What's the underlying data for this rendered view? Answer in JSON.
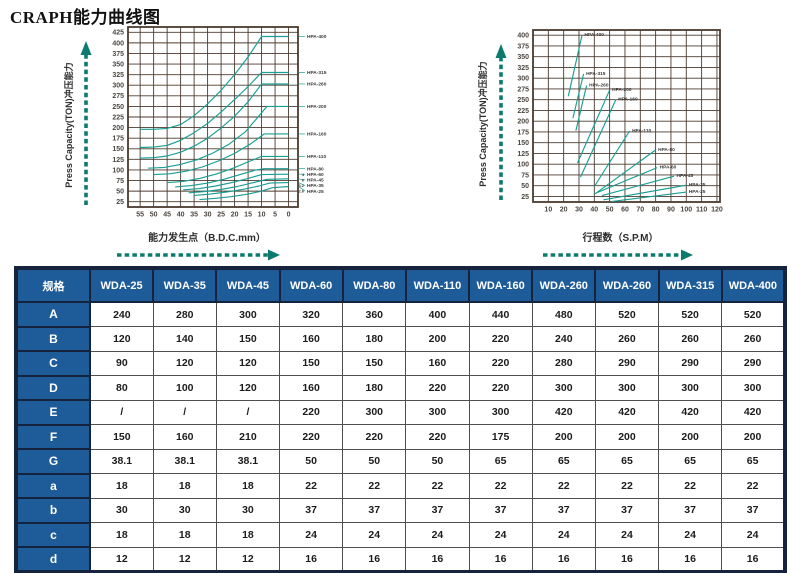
{
  "page": {
    "title": "CRAPH能力曲线图"
  },
  "colors": {
    "curve_teal": "#189e92",
    "arrow_teal": "#0d7a6e",
    "grid_brown": "#4b3a2f",
    "axis_text": "#4c4640",
    "label_text": "#3a3a3a",
    "table_header_bg": "#1e5b99",
    "table_frame_navy": "#15233d"
  },
  "chart_data": [
    {
      "type": "line",
      "name": "capacity-vs-bdc",
      "xlabel": "能力发生点（B.D.C.mm）",
      "ylabel": "Press Capacity(TON)冲压能力",
      "x_ticks": [
        55,
        50,
        45,
        40,
        35,
        30,
        25,
        20,
        15,
        10,
        5,
        0
      ],
      "y_ticks": [
        25,
        50,
        75,
        100,
        125,
        150,
        175,
        200,
        225,
        250,
        275,
        300,
        325,
        350,
        375,
        400,
        425
      ],
      "xlim_display": [
        59.5,
        -3.5
      ],
      "ylim": [
        12.5,
        437.5
      ],
      "grid": true,
      "legend_position": "right-outside",
      "series": [
        {
          "name": "HPA-400",
          "label_prefix": "",
          "points": [
            [
              55,
              196
            ],
            [
              50,
              196
            ],
            [
              45,
              198
            ],
            [
              40,
              207
            ],
            [
              35,
              228
            ],
            [
              30,
              256
            ],
            [
              25,
              288
            ],
            [
              20,
              325
            ],
            [
              15,
              367
            ],
            [
              10,
              415
            ],
            [
              0,
              415
            ]
          ]
        },
        {
          "name": "HPA-315",
          "label_prefix": "",
          "points": [
            [
              55,
              153
            ],
            [
              50,
              154
            ],
            [
              45,
              158
            ],
            [
              40,
              170
            ],
            [
              35,
              188
            ],
            [
              30,
              210
            ],
            [
              25,
              237
            ],
            [
              20,
              266
            ],
            [
              15,
              297
            ],
            [
              10,
              330
            ],
            [
              0,
              330
            ]
          ]
        },
        {
          "name": "HPA-260",
          "label_prefix": "",
          "points": [
            [
              55,
              128
            ],
            [
              50,
              129
            ],
            [
              45,
              133
            ],
            [
              40,
              142
            ],
            [
              35,
              156
            ],
            [
              30,
              175
            ],
            [
              25,
              199
            ],
            [
              20,
              227
            ],
            [
              15,
              261
            ],
            [
              10,
              303
            ],
            [
              0,
              303
            ]
          ]
        },
        {
          "name": "HPA-200",
          "label_prefix": "",
          "points": [
            [
              52,
              104
            ],
            [
              46,
              106
            ],
            [
              40,
              113
            ],
            [
              34,
              124
            ],
            [
              28,
              140
            ],
            [
              22,
              161
            ],
            [
              16,
              190
            ],
            [
              10,
              235
            ],
            [
              8,
              250
            ],
            [
              0,
              250
            ]
          ]
        },
        {
          "name": "HPA-160",
          "label_prefix": "",
          "points": [
            [
              50,
              89
            ],
            [
              44,
              91
            ],
            [
              38,
              97
            ],
            [
              32,
              107
            ],
            [
              26,
              121
            ],
            [
              20,
              139
            ],
            [
              14,
              162
            ],
            [
              9,
              185
            ],
            [
              0,
              185
            ]
          ]
        },
        {
          "name": "HPA-110",
          "label_prefix": "",
          "points": [
            [
              45,
              70
            ],
            [
              39,
              73
            ],
            [
              33,
              80
            ],
            [
              27,
              90
            ],
            [
              21,
              103
            ],
            [
              15,
              119
            ],
            [
              10,
              132
            ],
            [
              0,
              132
            ]
          ]
        },
        {
          "name": "HPA-80",
          "label_prefix": "",
          "points": [
            [
              42,
              60
            ],
            [
              36,
              63
            ],
            [
              30,
              69
            ],
            [
              24,
              78
            ],
            [
              18,
              89
            ],
            [
              12,
              100
            ],
            [
              9,
              103
            ],
            [
              0,
              103
            ]
          ]
        },
        {
          "name": "HPA-60",
          "label_prefix": "4",
          "points": [
            [
              39,
              53
            ],
            [
              33,
              56
            ],
            [
              27,
              62
            ],
            [
              21,
              70
            ],
            [
              15,
              80
            ],
            [
              10,
              89
            ],
            [
              0,
              90
            ]
          ]
        },
        {
          "name": "HPA-45",
          "label_prefix": "6",
          "points": [
            [
              37,
              46
            ],
            [
              31,
              49
            ],
            [
              25,
              54
            ],
            [
              19,
              61
            ],
            [
              13,
              70
            ],
            [
              8,
              78
            ],
            [
              0,
              79
            ]
          ]
        },
        {
          "name": "HPA-35",
          "label_prefix": "3.2",
          "points": [
            [
              35,
              40
            ],
            [
              29,
              43
            ],
            [
              23,
              48
            ],
            [
              17,
              54
            ],
            [
              11,
              62
            ],
            [
              7,
              69
            ],
            [
              0,
              70
            ]
          ]
        },
        {
          "name": "HPA-25",
          "label_prefix": "2.6",
          "points": [
            [
              33,
              30
            ],
            [
              27,
              33
            ],
            [
              21,
              37
            ],
            [
              15,
              43
            ],
            [
              10,
              50
            ],
            [
              6,
              58
            ],
            [
              0,
              61
            ]
          ]
        }
      ]
    },
    {
      "type": "line",
      "name": "capacity-vs-spm",
      "xlabel": "行程数（S.P.M）",
      "ylabel": "Press Capacity(TON)冲压能力",
      "x_ticks": [
        10,
        20,
        30,
        40,
        50,
        60,
        70,
        80,
        90,
        100,
        110,
        120
      ],
      "y_ticks": [
        25,
        50,
        75,
        100,
        125,
        150,
        175,
        200,
        225,
        250,
        275,
        300,
        325,
        350,
        375,
        400
      ],
      "xlim_display": [
        0,
        122
      ],
      "ylim": [
        12,
        412
      ],
      "grid": true,
      "legend_position": "at-line-end",
      "series": [
        {
          "name": "HPA-400",
          "label_prefix": "",
          "points": [
            [
              23,
              258
            ],
            [
              32,
              400
            ]
          ]
        },
        {
          "name": "HPA-315",
          "label_prefix": "",
          "points": [
            [
              26,
              207
            ],
            [
              33,
              310
            ]
          ]
        },
        {
          "name": "HPA-260",
          "label_prefix": "",
          "points": [
            [
              28,
              178
            ],
            [
              35,
              283
            ]
          ]
        },
        {
          "name": "HPA-200",
          "label_prefix": "",
          "points": [
            [
              29,
              103
            ],
            [
              50,
              272
            ]
          ]
        },
        {
          "name": "HPA-160",
          "label_prefix": "",
          "points": [
            [
              31,
              70
            ],
            [
              54,
              250
            ]
          ]
        },
        {
          "name": "HPA-110",
          "label_prefix": "",
          "points": [
            [
              40,
              48
            ],
            [
              63,
              177
            ]
          ]
        },
        {
          "name": "HPA-80",
          "label_prefix": "",
          "points": [
            [
              40,
              30
            ],
            [
              80,
              133
            ]
          ]
        },
        {
          "name": "HPA-60",
          "label_prefix": "",
          "points": [
            [
              42,
              34
            ],
            [
              81,
              92
            ]
          ]
        },
        {
          "name": "HPA-45",
          "label_prefix": "",
          "points": [
            [
              45,
              27
            ],
            [
              92,
              72
            ]
          ]
        },
        {
          "name": "HPA-35",
          "label_prefix": "",
          "points": [
            [
              46,
              17
            ],
            [
              100,
              51
            ]
          ]
        },
        {
          "name": "HPA-25",
          "label_prefix": "",
          "points": [
            [
              51,
              13
            ],
            [
              100,
              35
            ]
          ]
        }
      ]
    }
  ],
  "table": {
    "corner_label": "规格",
    "columns": [
      "WDA-25",
      "WDA-35",
      "WDA-45",
      "WDA-60",
      "WDA-80",
      "WDA-110",
      "WDA-160",
      "WDA-260",
      "WDA-260",
      "WDA-315",
      "WDA-400"
    ],
    "rows": [
      {
        "label": "A",
        "values": [
          "240",
          "280",
          "300",
          "320",
          "360",
          "400",
          "440",
          "480",
          "520",
          "520",
          "520"
        ]
      },
      {
        "label": "B",
        "values": [
          "120",
          "140",
          "150",
          "160",
          "180",
          "200",
          "220",
          "240",
          "260",
          "260",
          "260"
        ]
      },
      {
        "label": "C",
        "values": [
          "90",
          "120",
          "120",
          "150",
          "150",
          "160",
          "220",
          "280",
          "290",
          "290",
          "290"
        ]
      },
      {
        "label": "D",
        "values": [
          "80",
          "100",
          "120",
          "160",
          "180",
          "220",
          "220",
          "300",
          "300",
          "300",
          "300"
        ]
      },
      {
        "label": "E",
        "values": [
          "/",
          "/",
          "/",
          "220",
          "300",
          "300",
          "300",
          "420",
          "420",
          "420",
          "420"
        ]
      },
      {
        "label": "F",
        "values": [
          "150",
          "160",
          "210",
          "220",
          "220",
          "220",
          "175",
          "200",
          "200",
          "200",
          "200"
        ]
      },
      {
        "label": "G",
        "values": [
          "38.1",
          "38.1",
          "38.1",
          "50",
          "50",
          "50",
          "65",
          "65",
          "65",
          "65",
          "65"
        ]
      },
      {
        "label": "a",
        "values": [
          "18",
          "18",
          "18",
          "22",
          "22",
          "22",
          "22",
          "22",
          "22",
          "22",
          "22"
        ]
      },
      {
        "label": "b",
        "values": [
          "30",
          "30",
          "30",
          "37",
          "37",
          "37",
          "37",
          "37",
          "37",
          "37",
          "37"
        ]
      },
      {
        "label": "c",
        "values": [
          "18",
          "18",
          "18",
          "24",
          "24",
          "24",
          "24",
          "24",
          "24",
          "24",
          "24"
        ]
      },
      {
        "label": "d",
        "values": [
          "12",
          "12",
          "12",
          "16",
          "16",
          "16",
          "16",
          "16",
          "16",
          "16",
          "16"
        ]
      }
    ]
  }
}
